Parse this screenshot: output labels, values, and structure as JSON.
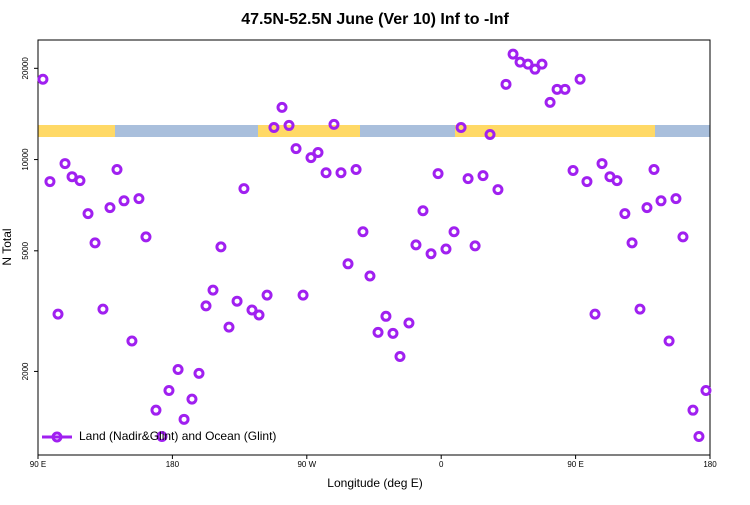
{
  "chart_data": {
    "type": "scatter",
    "title": "47.5N-52.5N June (Ver 10)   Inf to -Inf",
    "xlabel": "Longitude (deg E)",
    "ylabel": "N Total",
    "xlim": [
      90,
      540
    ],
    "ylim": [
      1060,
      24800
    ],
    "log_y": true,
    "legend": "bottom-left",
    "xticks": [
      {
        "value": 90,
        "label": "90 E"
      },
      {
        "value": 180,
        "label": "180"
      },
      {
        "value": 270,
        "label": "90 W"
      },
      {
        "value": 360,
        "label": "0"
      },
      {
        "value": 450,
        "label": "90 E"
      },
      {
        "value": 540,
        "label": "180"
      }
    ],
    "yticks": [
      2000,
      5000,
      10000,
      20000
    ],
    "series": [
      {
        "name": "Land (Nadir&Glint) and Ocean (Glint)",
        "color": "#a020f0",
        "x": [
          93.3,
          98.0,
          103.4,
          108.1,
          112.8,
          118.1,
          123.5,
          128.2,
          133.5,
          138.2,
          142.9,
          147.6,
          152.9,
          157.6,
          162.3,
          169.0,
          173.0,
          177.7,
          183.8,
          187.8,
          193.1,
          197.8,
          202.5,
          207.2,
          212.5,
          217.9,
          223.3,
          227.9,
          233.3,
          238.0,
          243.4,
          248.0,
          253.4,
          258.1,
          262.8,
          267.5,
          272.8,
          277.5,
          282.9,
          288.2,
          292.9,
          297.6,
          303.0,
          307.6,
          312.3,
          317.7,
          323.0,
          327.7,
          332.4,
          338.4,
          343.1,
          347.8,
          353.2,
          357.9,
          363.2,
          368.6,
          373.3,
          378.0,
          382.7,
          388.0,
          392.7,
          398.0,
          403.4,
          408.1,
          412.8,
          418.1,
          422.8,
          427.5,
          432.9,
          437.6,
          442.9,
          448.3,
          453.0,
          457.6,
          463.0,
          467.7,
          473.0,
          477.7,
          483.0,
          487.8,
          493.1,
          497.8,
          502.5,
          507.2,
          512.6,
          517.2,
          521.9,
          528.6,
          532.6,
          537.3
        ],
        "values": [
          18400,
          8460,
          3090,
          9700,
          8780,
          8520,
          6630,
          5310,
          3210,
          6940,
          9270,
          7310,
          2520,
          7430,
          5560,
          1490,
          1220,
          1730,
          2030,
          1390,
          1620,
          1970,
          3290,
          3710,
          5150,
          2800,
          3410,
          8020,
          3190,
          3070,
          3570,
          12760,
          14860,
          12960,
          10870,
          3570,
          10150,
          10550,
          9050,
          13060,
          9050,
          4530,
          9270,
          5780,
          4130,
          2690,
          3040,
          2670,
          2240,
          2890,
          5230,
          6780,
          4890,
          8990,
          5070,
          5780,
          12760,
          8650,
          5190,
          8850,
          12100,
          7960,
          17710,
          22280,
          20960,
          20640,
          19870,
          20640,
          15440,
          17050,
          17050,
          9200,
          18400,
          8460,
          3090,
          9700,
          8780,
          8520,
          6630,
          5310,
          3210,
          6940,
          9270,
          7310,
          2520,
          7430,
          5560,
          1490,
          1220,
          1730
        ]
      }
    ]
  }
}
